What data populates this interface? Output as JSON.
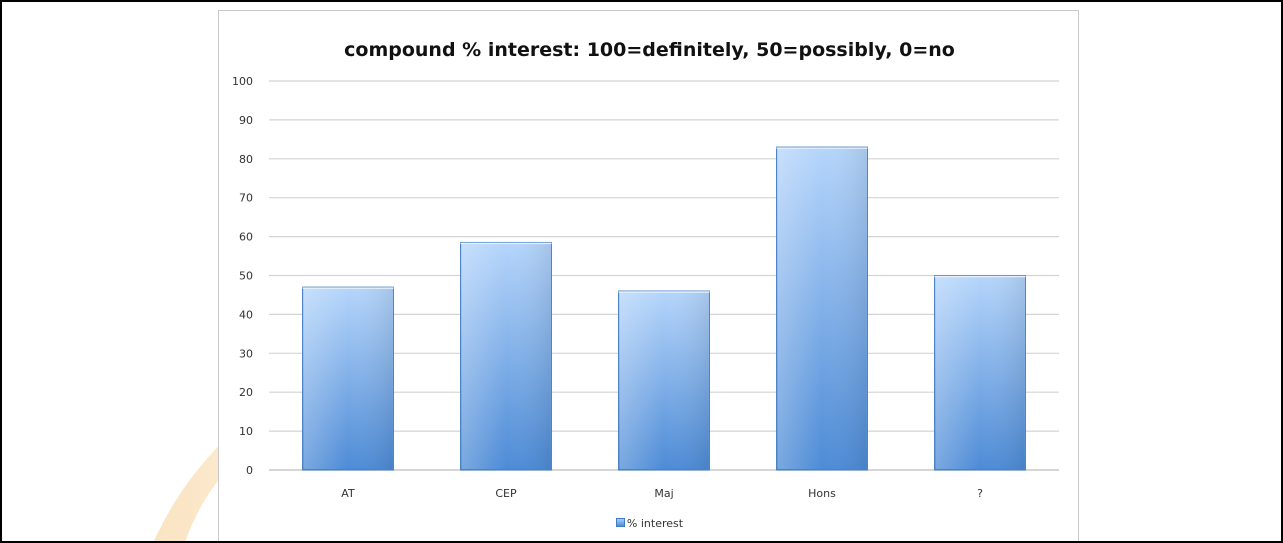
{
  "chart_data": {
    "type": "bar",
    "title": "compound % interest: 100=definitely, 50=possibly, 0=no",
    "xlabel": "",
    "ylabel": "",
    "categories": [
      "AT",
      "CEP",
      "Maj",
      "Hons",
      "?"
    ],
    "series": [
      {
        "name": "% interest",
        "values": [
          47,
          58.5,
          46,
          83,
          50
        ]
      }
    ],
    "ylim": [
      0,
      100
    ],
    "yticks": [
      0,
      10,
      20,
      30,
      40,
      50,
      60,
      70,
      80,
      90,
      100
    ],
    "grid": true,
    "legend": "bottom",
    "colors": {
      "bar_top": "#b5d5fb",
      "bar_bottom": "#4d8bd6",
      "bar_edge": "#3e7bc3",
      "grid": "#d4d4d4"
    }
  }
}
